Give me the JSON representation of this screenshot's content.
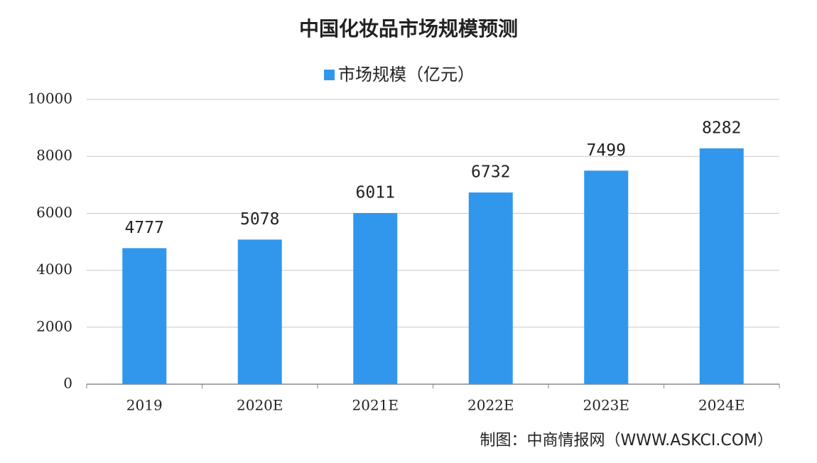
{
  "chart_data": {
    "type": "bar",
    "title": "中国化妆品市场规模预测",
    "categories": [
      "2019",
      "2020E",
      "2021E",
      "2022E",
      "2023E",
      "2024E"
    ],
    "series": [
      {
        "name": "市场规模（亿元）",
        "color": "#3197ec",
        "values": [
          4777,
          5078,
          6011,
          6732,
          7499,
          8282
        ]
      }
    ],
    "ylim": [
      0,
      10000
    ],
    "yticks": [
      0,
      2000,
      4000,
      6000,
      8000,
      10000
    ],
    "grid": true,
    "source": "制图：中商情报网（WWW.ASKCI.COM）"
  }
}
